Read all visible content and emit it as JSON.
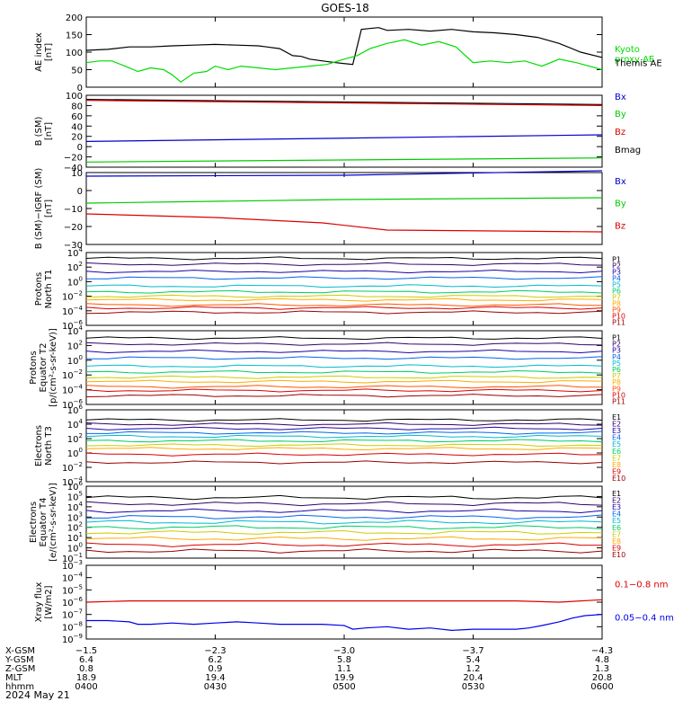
{
  "title": "GOES-18",
  "date_label": "2024 May 21",
  "colors": {
    "axis": "#000000",
    "ae_themis": "#000000",
    "ae_kyoto": "#00dd00",
    "bx": "#0000cc",
    "by": "#00cc00",
    "bz": "#dd0000",
    "bmag": "#000000",
    "xray_long": "#dd0000",
    "xray_short": "#0000ee"
  },
  "chart_data": [
    {
      "type": "line",
      "id": "ae",
      "ylabel_lines": [
        "AE index",
        "[nT]"
      ],
      "ylim": [
        0,
        200
      ],
      "yticks": [
        0,
        50,
        100,
        150,
        200
      ],
      "ytick_labels": [
        "0",
        "50",
        "100",
        "150",
        "200"
      ],
      "scale": "linear",
      "legend": [
        {
          "label_lines": [
            "Kyoto",
            "proxy AE"
          ],
          "color": "#00dd00",
          "row": 0.5
        },
        {
          "label_lines": [
            "Themis AE"
          ],
          "color": "#000000",
          "row": 0.7
        }
      ],
      "series": [
        {
          "name": "Themis AE",
          "color": "#000000",
          "x": [
            0,
            5,
            10,
            15,
            20,
            25,
            30,
            35,
            40,
            42,
            45,
            48,
            50,
            52,
            55,
            58,
            62,
            64,
            68,
            70,
            75,
            80,
            85,
            90,
            95,
            100,
            105,
            110,
            115,
            120
          ],
          "y": [
            105,
            108,
            115,
            115,
            118,
            120,
            122,
            120,
            118,
            115,
            110,
            90,
            88,
            80,
            75,
            70,
            65,
            165,
            170,
            162,
            165,
            160,
            165,
            158,
            155,
            150,
            142,
            125,
            100,
            85
          ]
        },
        {
          "name": "Kyoto proxy AE",
          "color": "#00dd00",
          "x": [
            0,
            3,
            6,
            9,
            12,
            15,
            18,
            20,
            22,
            25,
            28,
            30,
            33,
            36,
            40,
            44,
            48,
            52,
            56,
            60,
            63,
            66,
            70,
            74,
            78,
            82,
            86,
            90,
            94,
            98,
            102,
            106,
            110,
            114,
            117,
            120
          ],
          "y": [
            70,
            75,
            75,
            60,
            45,
            55,
            50,
            35,
            15,
            40,
            45,
            60,
            50,
            60,
            55,
            50,
            55,
            60,
            65,
            80,
            90,
            110,
            125,
            135,
            120,
            130,
            115,
            70,
            75,
            70,
            75,
            60,
            80,
            70,
            60,
            50
          ]
        }
      ]
    },
    {
      "type": "line",
      "id": "bsm",
      "ylabel_lines": [
        "B (SM)",
        "[nT]"
      ],
      "ylim": [
        -40,
        100
      ],
      "yticks": [
        -40,
        -20,
        0,
        20,
        40,
        60,
        80,
        100
      ],
      "ytick_labels": [
        "−40",
        "−20",
        "0",
        "20",
        "40",
        "60",
        "80",
        "100"
      ],
      "scale": "linear",
      "legend": [
        {
          "label_lines": [
            "Bx"
          ],
          "color": "#0000cc",
          "row": 0.06
        },
        {
          "label_lines": [
            "By"
          ],
          "color": "#00cc00",
          "row": 0.3
        },
        {
          "label_lines": [
            "Bz"
          ],
          "color": "#dd0000",
          "row": 0.55
        },
        {
          "label_lines": [
            "Bmag"
          ],
          "color": "#000000",
          "row": 0.8
        }
      ],
      "series": [
        {
          "name": "Bmag",
          "color": "#000000",
          "x": [
            0,
            120
          ],
          "y": [
            92,
            82
          ]
        },
        {
          "name": "Bz",
          "color": "#dd0000",
          "x": [
            0,
            120
          ],
          "y": [
            90,
            80
          ]
        },
        {
          "name": "Bx",
          "color": "#0000cc",
          "x": [
            0,
            120
          ],
          "y": [
            10,
            23
          ]
        },
        {
          "name": "By",
          "color": "#00cc00",
          "x": [
            0,
            120
          ],
          "y": [
            -30,
            -22
          ]
        }
      ]
    },
    {
      "type": "line",
      "id": "bsmigrf",
      "ylabel_lines": [
        "B (SM)−IGRF (SM)",
        "[nT]"
      ],
      "ylim": [
        -30,
        10
      ],
      "yticks": [
        -30,
        -20,
        -10,
        0,
        10
      ],
      "ytick_labels": [
        "−30",
        "−20",
        "−10",
        "0",
        "10"
      ],
      "scale": "linear",
      "legend": [
        {
          "label_lines": [
            "Bx"
          ],
          "color": "#0000cc",
          "row": 0.16
        },
        {
          "label_lines": [
            "By"
          ],
          "color": "#00cc00",
          "row": 0.47
        },
        {
          "label_lines": [
            "Bz"
          ],
          "color": "#dd0000",
          "row": 0.78
        }
      ],
      "series": [
        {
          "name": "Bx",
          "color": "#0000cc",
          "x": [
            0,
            60,
            120
          ],
          "y": [
            8,
            8.5,
            11
          ]
        },
        {
          "name": "By",
          "color": "#00cc00",
          "x": [
            0,
            60,
            120
          ],
          "y": [
            -7,
            -5,
            -4
          ]
        },
        {
          "name": "Bz",
          "color": "#dd0000",
          "x": [
            0,
            30,
            55,
            70,
            120
          ],
          "y": [
            -13,
            -15,
            -18,
            -22,
            -23
          ]
        }
      ]
    },
    {
      "type": "line",
      "id": "pnt1",
      "scale": "log",
      "ylabel_lines": [
        "Protons",
        "North T1"
      ],
      "ylim_exp": [
        -6,
        4
      ],
      "ytick_exps": [
        -6,
        -4,
        -2,
        0,
        2,
        4
      ],
      "channels": [
        {
          "name": "P1",
          "color": "#000000",
          "level": 3.2
        },
        {
          "name": "P2",
          "color": "#330066",
          "level": 2.4
        },
        {
          "name": "P3",
          "color": "#2200aa",
          "level": 1.4
        },
        {
          "name": "P4",
          "color": "#0066ee",
          "level": 0.5
        },
        {
          "name": "P5",
          "color": "#00bbcc",
          "level": -0.6
        },
        {
          "name": "P6",
          "color": "#00cc66",
          "level": -1.4
        },
        {
          "name": "P7",
          "color": "#cccc00",
          "level": -2.0
        },
        {
          "name": "P8",
          "color": "#ffaa00",
          "level": -2.5
        },
        {
          "name": "P9",
          "color": "#ff5500",
          "level": -3.2
        },
        {
          "name": "P10",
          "color": "#dd0000",
          "level": -3.6
        },
        {
          "name": "P11",
          "color": "#990000",
          "level": -4.2
        }
      ]
    },
    {
      "type": "line",
      "id": "pet2",
      "scale": "log",
      "ylabel_lines": [
        "Protons",
        "Equator T2",
        "[p/(cm²-s-sr-keV)]"
      ],
      "ylim_exp": [
        -6,
        4
      ],
      "ytick_exps": [
        -6,
        -4,
        -2,
        0,
        2,
        4
      ],
      "channels": [
        {
          "name": "P1",
          "color": "#000000",
          "level": 3.0
        },
        {
          "name": "P2",
          "color": "#330066",
          "level": 2.2
        },
        {
          "name": "P3",
          "color": "#2200aa",
          "level": 1.2
        },
        {
          "name": "P4",
          "color": "#0066ee",
          "level": 0.3
        },
        {
          "name": "P5",
          "color": "#00bbcc",
          "level": -0.8
        },
        {
          "name": "P6",
          "color": "#00cc66",
          "level": -1.6
        },
        {
          "name": "P7",
          "color": "#cccc00",
          "level": -2.3
        },
        {
          "name": "P8",
          "color": "#ffaa00",
          "level": -2.9
        },
        {
          "name": "P9",
          "color": "#ff5500",
          "level": -3.6
        },
        {
          "name": "P10",
          "color": "#dd0000",
          "level": -4.1
        },
        {
          "name": "P11",
          "color": "#990000",
          "level": -4.8
        }
      ]
    },
    {
      "type": "line",
      "id": "ent3",
      "scale": "log",
      "ylabel_lines": [
        "Electrons",
        "North T3"
      ],
      "ylim_exp": [
        -4,
        6
      ],
      "ytick_exps": [
        -4,
        -2,
        0,
        2,
        4,
        6
      ],
      "channels": [
        {
          "name": "E1",
          "color": "#000000",
          "level": 4.6
        },
        {
          "name": "E2",
          "color": "#330066",
          "level": 4.0
        },
        {
          "name": "E3",
          "color": "#2200aa",
          "level": 3.4
        },
        {
          "name": "E4",
          "color": "#0066ee",
          "level": 2.8
        },
        {
          "name": "E5",
          "color": "#00bbcc",
          "level": 2.3
        },
        {
          "name": "E6",
          "color": "#00cc66",
          "level": 1.7
        },
        {
          "name": "E7",
          "color": "#cccc00",
          "level": 1.1
        },
        {
          "name": "E8",
          "color": "#ffaa00",
          "level": 0.6
        },
        {
          "name": "E9",
          "color": "#dd0000",
          "level": -0.2
        },
        {
          "name": "E10",
          "color": "#990000",
          "level": -1.3
        }
      ]
    },
    {
      "type": "line",
      "id": "eet4",
      "scale": "log",
      "ylabel_lines": [
        "Electrons",
        "Equator T4",
        "[e/(cm²-s-sr-keV)]"
      ],
      "ylim_exp": [
        -1,
        6
      ],
      "ytick_exps": [
        -1,
        0,
        1,
        2,
        3,
        4,
        5,
        6
      ],
      "channels": [
        {
          "name": "E1",
          "color": "#000000",
          "level": 4.9
        },
        {
          "name": "E2",
          "color": "#330066",
          "level": 4.3
        },
        {
          "name": "E3",
          "color": "#2200aa",
          "level": 3.6
        },
        {
          "name": "E4",
          "color": "#0066ee",
          "level": 3.0
        },
        {
          "name": "E5",
          "color": "#00bbcc",
          "level": 2.5
        },
        {
          "name": "E6",
          "color": "#00cc66",
          "level": 2.0
        },
        {
          "name": "E7",
          "color": "#cccc00",
          "level": 1.5
        },
        {
          "name": "E8",
          "color": "#ffaa00",
          "level": 0.9
        },
        {
          "name": "E9",
          "color": "#dd0000",
          "level": 0.3
        },
        {
          "name": "E10",
          "color": "#990000",
          "level": -0.3
        }
      ]
    },
    {
      "type": "line",
      "id": "xray",
      "scale": "log",
      "ylabel_lines": [
        "Xray flux",
        "[W/m2]"
      ],
      "ylim_exp": [
        -9,
        -3
      ],
      "ytick_exps": [
        -9,
        -8,
        -7,
        -6,
        -5,
        -4,
        -3
      ],
      "legend": [
        {
          "label_lines": [
            "0.1−0.8 nm"
          ],
          "color": "#dd0000",
          "row": 0.3
        },
        {
          "label_lines": [
            "0.05−0.4 nm"
          ],
          "color": "#0000ee",
          "row": 0.75
        }
      ],
      "series": [
        {
          "name": "0.1−0.8 nm",
          "color": "#dd0000",
          "x": [
            0,
            10,
            20,
            40,
            60,
            80,
            100,
            110,
            120
          ],
          "y": [
            -6.0,
            -5.9,
            -5.9,
            -5.9,
            -5.9,
            -5.9,
            -5.9,
            -6.0,
            -5.8
          ]
        },
        {
          "name": "0.05−0.4 nm",
          "color": "#0000ee",
          "x": [
            0,
            5,
            10,
            12,
            15,
            20,
            25,
            30,
            35,
            40,
            45,
            50,
            55,
            60,
            62,
            65,
            70,
            75,
            80,
            85,
            90,
            95,
            100,
            103,
            106,
            110,
            113,
            116,
            120
          ],
          "y": [
            -7.5,
            -7.5,
            -7.6,
            -7.8,
            -7.8,
            -7.7,
            -7.8,
            -7.7,
            -7.6,
            -7.7,
            -7.8,
            -7.8,
            -7.8,
            -7.9,
            -8.2,
            -8.1,
            -8.0,
            -8.2,
            -8.1,
            -8.3,
            -8.2,
            -8.2,
            -8.2,
            -8.1,
            -7.9,
            -7.6,
            -7.3,
            -7.1,
            -7.0
          ]
        }
      ]
    }
  ],
  "x_axis": {
    "ticks": [
      0,
      30,
      60,
      90,
      120
    ],
    "row_labels": [
      "X-GSM",
      "Y-GSM",
      "Z-GSM",
      "MLT",
      "hhmm"
    ],
    "columns": [
      [
        "−1.5",
        "6.4",
        "0.8",
        "18.9",
        "0400"
      ],
      [
        "−2.3",
        "6.2",
        "0.9",
        "19.4",
        "0430"
      ],
      [
        "−3.0",
        "5.8",
        "1.1",
        "19.9",
        "0500"
      ],
      [
        "−3.7",
        "5.4",
        "1.2",
        "20.4",
        "0530"
      ],
      [
        "−4.3",
        "4.8",
        "1.3",
        "20.8",
        "0600"
      ]
    ]
  }
}
